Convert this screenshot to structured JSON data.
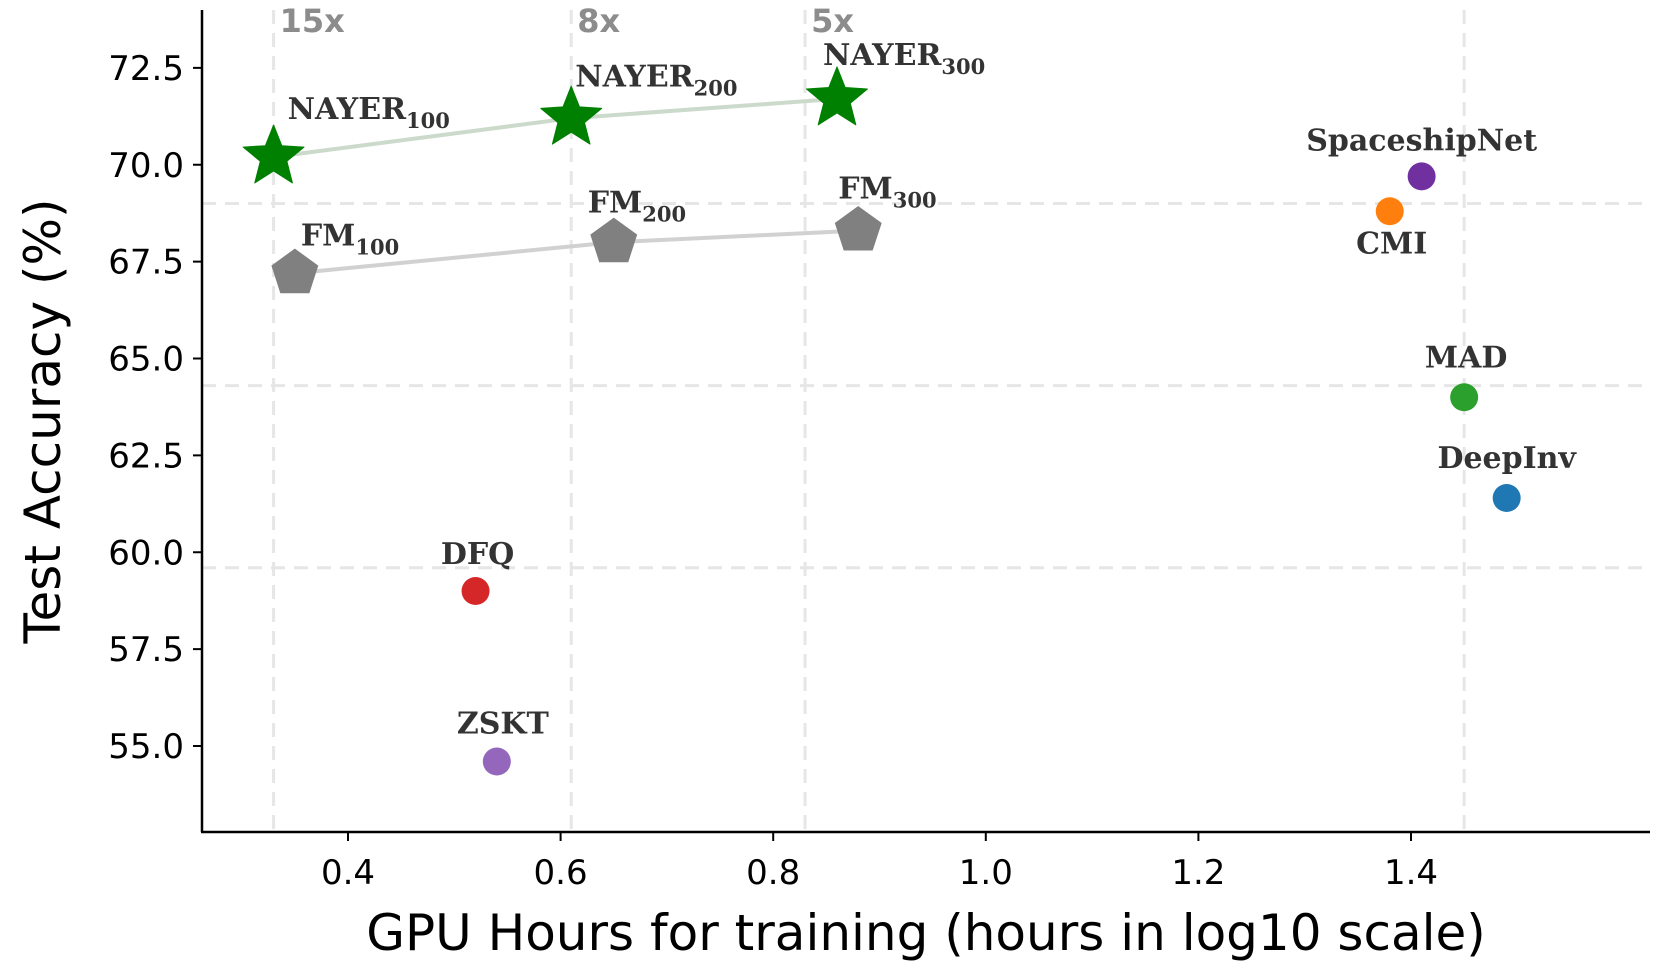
{
  "chart_data": {
    "type": "scatter",
    "xlabel": "GPU Hours for training (hours in log10 scale)",
    "ylabel": "Test Accuracy (%)",
    "xlim": [
      0.28,
      1.55
    ],
    "ylim": [
      54.0,
      73.8
    ],
    "xticks": [
      0.4,
      0.6,
      0.8,
      1.0,
      1.2,
      1.4
    ],
    "xtick_labels": [
      "0.4",
      "0.6",
      "0.8",
      "1.0",
      "1.2",
      "1.4"
    ],
    "yticks": [
      55.0,
      57.5,
      60.0,
      62.5,
      65.0,
      67.5,
      70.0,
      72.5
    ],
    "ytick_labels": [
      "55.0",
      "57.5",
      "60.0",
      "62.5",
      "65.0",
      "67.5",
      "70.0",
      "72.5"
    ],
    "grid_x": [
      0.33,
      0.61,
      0.83,
      1.45
    ],
    "grid_y": [
      69.0,
      64.3,
      59.6
    ],
    "speedup_labels": [
      {
        "text": "15x",
        "x": 0.33
      },
      {
        "text": "8x",
        "x": 0.61
      },
      {
        "text": "5x",
        "x": 0.83
      }
    ],
    "series": [
      {
        "marker": "star",
        "color": "#008000",
        "connected": true,
        "points": [
          {
            "name": "NAYER",
            "sub": "100",
            "x": 0.33,
            "y": 70.2
          },
          {
            "name": "NAYER",
            "sub": "200",
            "x": 0.61,
            "y": 71.2
          },
          {
            "name": "NAYER",
            "sub": "300",
            "x": 0.86,
            "y": 71.7
          }
        ]
      },
      {
        "marker": "pentagon",
        "color": "#808080",
        "connected": true,
        "points": [
          {
            "name": "FM",
            "sub": "100",
            "x": 0.35,
            "y": 67.2
          },
          {
            "name": "FM",
            "sub": "200",
            "x": 0.65,
            "y": 68.0
          },
          {
            "name": "FM",
            "sub": "300",
            "x": 0.88,
            "y": 68.3
          }
        ]
      },
      {
        "marker": "circle",
        "connected": false,
        "points": [
          {
            "name": "SpaceshipNet",
            "x": 1.41,
            "y": 69.7,
            "color": "#7030a0"
          },
          {
            "name": "CMI",
            "x": 1.38,
            "y": 68.8,
            "color": "#ff7f0e"
          },
          {
            "name": "MAD",
            "x": 1.45,
            "y": 64.0,
            "color": "#2ca02c"
          },
          {
            "name": "DeepInv",
            "x": 1.49,
            "y": 61.4,
            "color": "#1f77b4"
          },
          {
            "name": "DFQ",
            "x": 0.52,
            "y": 59.0,
            "color": "#d62728"
          },
          {
            "name": "ZSKT",
            "x": 0.54,
            "y": 54.6,
            "color": "#9467bd"
          }
        ]
      }
    ]
  }
}
